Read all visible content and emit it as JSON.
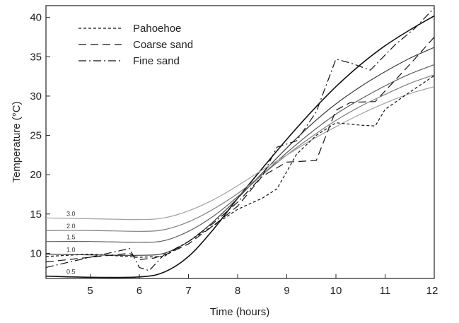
{
  "chart_data": {
    "type": "line",
    "xlabel": "Time (hours)",
    "ylabel": "Temperature (°C)",
    "xlim": [
      4.1,
      12.0
    ],
    "ylim": [
      6.8,
      41.5
    ],
    "xticks": [
      5,
      6,
      7,
      8,
      9,
      10,
      11,
      12
    ],
    "yticks": [
      10,
      15,
      20,
      25,
      30,
      35,
      40
    ],
    "grid": false,
    "legend": "top-left",
    "legend_entries": [
      {
        "label": "Pahoehoe",
        "dash": "short-dash"
      },
      {
        "label": "Coarse sand",
        "dash": "long-dash"
      },
      {
        "label": "Fine sand",
        "dash": "dash-dot"
      }
    ],
    "measured_series": [
      {
        "name": "Pahoehoe",
        "dash": "short-dash",
        "x": [
          4.1,
          5.0,
          6.0,
          6.5,
          7.0,
          7.5,
          8.0,
          8.5,
          8.8,
          9.2,
          9.6,
          10.0,
          10.5,
          10.8,
          11.0,
          11.5,
          12.0
        ],
        "y": [
          9.6,
          9.9,
          9.5,
          9.6,
          11.5,
          13.5,
          15.6,
          17.0,
          18.2,
          22.6,
          25.0,
          26.6,
          26.3,
          26.2,
          28.3,
          30.5,
          32.6
        ]
      },
      {
        "name": "Coarse sand",
        "dash": "long-dash",
        "x": [
          4.1,
          5.0,
          5.8,
          6.0,
          6.3,
          6.6,
          7.0,
          7.5,
          8.0,
          8.5,
          9.0,
          9.6,
          10.0,
          10.3,
          10.8,
          11.5,
          12.0
        ],
        "y": [
          8.9,
          9.5,
          10.0,
          9.2,
          9.4,
          10.0,
          11.2,
          13.5,
          16.0,
          19.8,
          21.6,
          21.8,
          28.2,
          29.2,
          29.3,
          34.0,
          37.5
        ]
      },
      {
        "name": "Fine sand",
        "dash": "dash-dot",
        "x": [
          4.1,
          5.0,
          5.8,
          6.0,
          6.2,
          6.5,
          7.0,
          7.5,
          8.0,
          8.5,
          8.8,
          9.2,
          9.6,
          10.0,
          10.3,
          10.7,
          11.2,
          11.6,
          12.0
        ],
        "y": [
          8.2,
          9.5,
          10.6,
          8.2,
          7.8,
          9.8,
          11.5,
          13.8,
          16.5,
          19.8,
          23.5,
          24.3,
          28.0,
          34.7,
          34.2,
          33.3,
          36.5,
          38.6,
          41.2
        ]
      }
    ],
    "model_series": [
      {
        "name": "0.5",
        "shade": "#111111",
        "x": [
          4.1,
          5.0,
          6.0,
          6.5,
          7.0,
          7.5,
          8.0,
          8.5,
          9.0,
          9.5,
          10.0,
          10.5,
          11.0,
          11.5,
          12.0
        ],
        "y": [
          7.1,
          6.95,
          7.0,
          7.6,
          9.6,
          13.0,
          17.0,
          20.8,
          24.5,
          28.0,
          31.2,
          34.0,
          36.4,
          38.4,
          40.2
        ]
      },
      {
        "name": "1.0",
        "shade": "#3a3a3a",
        "x": [
          4.1,
          5.0,
          6.0,
          6.5,
          7.0,
          7.5,
          8.0,
          8.5,
          9.0,
          9.5,
          10.0,
          10.5,
          11.0,
          11.5,
          12.0
        ],
        "y": [
          9.9,
          9.8,
          9.75,
          10.0,
          11.5,
          14.0,
          17.0,
          20.2,
          23.4,
          26.4,
          29.0,
          31.2,
          33.1,
          34.8,
          36.2
        ]
      },
      {
        "name": "1.5",
        "shade": "#5e5e5e",
        "x": [
          4.1,
          5.0,
          6.0,
          6.5,
          7.0,
          7.5,
          8.0,
          8.5,
          9.0,
          9.5,
          10.0,
          10.5,
          11.0,
          11.5,
          12.0
        ],
        "y": [
          11.5,
          11.5,
          11.4,
          11.6,
          12.8,
          14.7,
          17.2,
          20.0,
          22.8,
          25.4,
          27.7,
          29.6,
          31.3,
          32.8,
          34.0
        ]
      },
      {
        "name": "2.0",
        "shade": "#7e7e7e",
        "x": [
          4.1,
          5.0,
          6.0,
          6.5,
          7.0,
          7.5,
          8.0,
          8.5,
          9.0,
          9.5,
          10.0,
          10.5,
          11.0,
          11.5,
          12.0
        ],
        "y": [
          12.9,
          12.9,
          12.8,
          13.0,
          14.0,
          15.6,
          17.6,
          20.0,
          22.5,
          24.8,
          26.9,
          28.7,
          30.2,
          31.6,
          32.7
        ]
      },
      {
        "name": "3.0",
        "shade": "#a2a2a2",
        "x": [
          4.1,
          5.0,
          6.0,
          6.5,
          7.0,
          7.5,
          8.0,
          8.5,
          9.0,
          9.5,
          10.0,
          10.5,
          11.0,
          11.5,
          12.0
        ],
        "y": [
          14.5,
          14.4,
          14.3,
          14.5,
          15.4,
          16.8,
          18.6,
          20.6,
          22.5,
          24.4,
          26.1,
          27.7,
          29.1,
          30.3,
          31.2
        ]
      }
    ]
  }
}
